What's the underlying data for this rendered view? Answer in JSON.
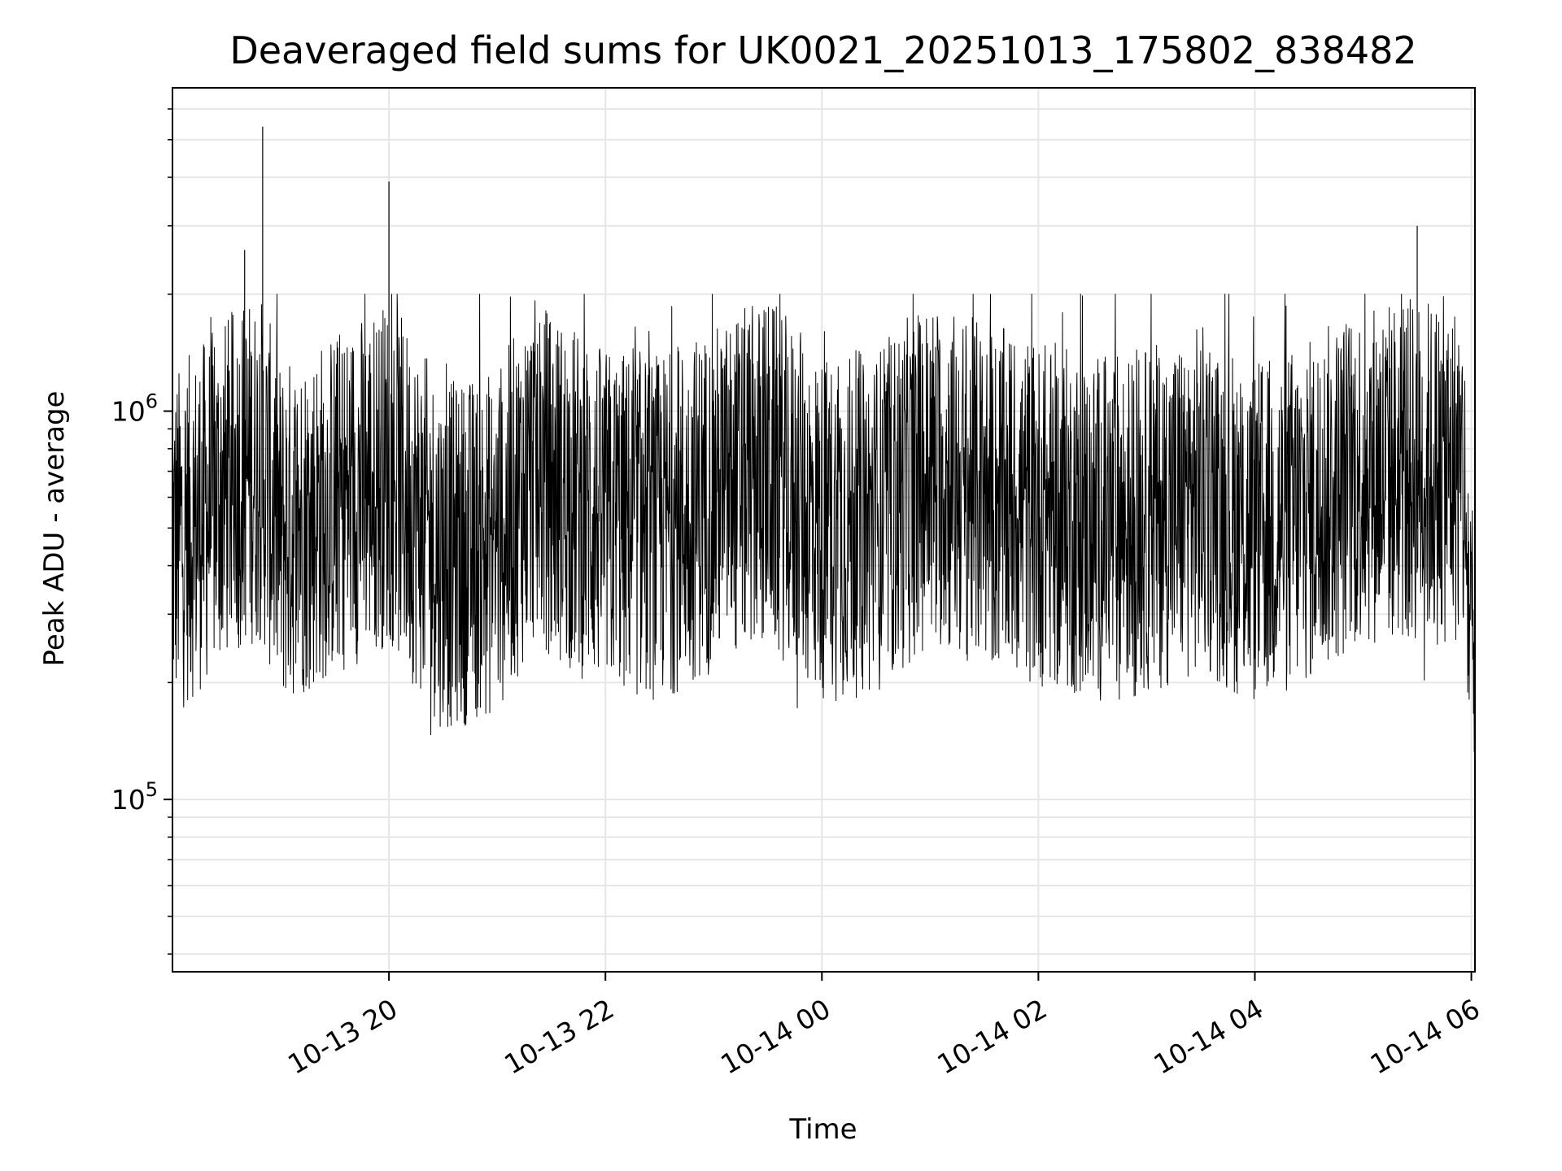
{
  "chart_data": {
    "type": "line",
    "title": "Deaveraged field sums for UK0021_20251013_175802_838482",
    "xlabel": "Time",
    "ylabel": "Peak ADU - average",
    "yscale": "log",
    "ylim": [
      36000,
      6800000
    ],
    "xlim": [
      "2025-10-13 18:00",
      "2025-10-14 06:02"
    ],
    "x_ticks": [
      {
        "t": "2025-10-13 20:00",
        "label": "10-13 20"
      },
      {
        "t": "2025-10-13 22:00",
        "label": "10-13 22"
      },
      {
        "t": "2025-10-14 00:00",
        "label": "10-14 00"
      },
      {
        "t": "2025-10-14 02:00",
        "label": "10-14 02"
      },
      {
        "t": "2025-10-14 04:00",
        "label": "10-14 04"
      },
      {
        "t": "2025-10-14 06:00",
        "label": "10-14 06"
      }
    ],
    "y_ticks": [
      {
        "value": 100000,
        "base": "10",
        "exp": "5"
      },
      {
        "value": 1000000,
        "base": "10",
        "exp": "6"
      }
    ],
    "grid": true,
    "line_color": "#000000",
    "grid_color": "#e6e6e6",
    "series": [
      {
        "x": [
          "2025-10-13 18:00",
          "2025-10-13 18:40",
          "2025-10-13 18:50",
          "2025-10-13 19:00",
          "2025-10-13 20:00",
          "2025-10-13 20:30",
          "2025-10-13 21:00",
          "2025-10-13 21:20",
          "2025-10-13 22:00",
          "2025-10-13 22:30",
          "2025-10-13 23:00",
          "2025-10-13 23:30",
          "2025-10-14 00:00",
          "2025-10-14 00:30",
          "2025-10-14 01:00",
          "2025-10-14 01:30",
          "2025-10-14 02:00",
          "2025-10-14 02:30",
          "2025-10-14 03:00",
          "2025-10-14 03:30",
          "2025-10-14 04:00",
          "2025-10-14 04:30",
          "2025-10-14 05:00",
          "2025-10-14 05:30",
          "2025-10-14 05:55",
          "2025-10-14 06:02"
        ],
        "y": [
          450000,
          2600000,
          5400000,
          480000,
          3900000,
          420000,
          460000,
          1500000,
          520000,
          500000,
          600000,
          720000,
          500000,
          520000,
          1300000,
          600000,
          550000,
          500000,
          520000,
          600000,
          480000,
          550000,
          700000,
          3000000,
          1200000,
          160000
        ]
      }
    ]
  }
}
